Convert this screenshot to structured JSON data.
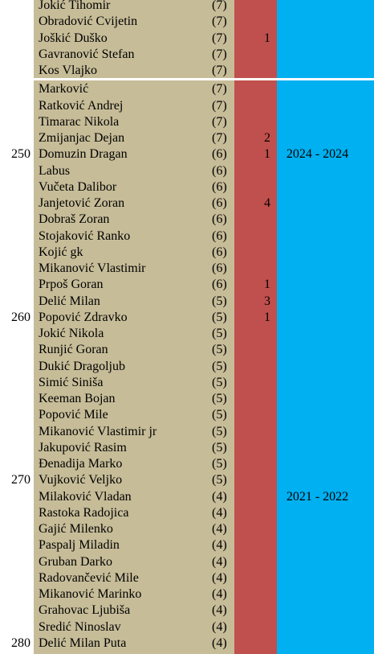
{
  "colors": {
    "name_column": "#c6bc98",
    "count_column": "#c0504d",
    "years_column": "#00b0f0",
    "separator": "#ffffff"
  },
  "rows": [
    {
      "rank": "",
      "name": "Jokić Tihomir",
      "pts": "(7)",
      "cnt": "",
      "yrs": ""
    },
    {
      "rank": "",
      "name": "Obradović Cvijetin",
      "pts": "(7)",
      "cnt": "",
      "yrs": ""
    },
    {
      "rank": "",
      "name": "Joškić Duško",
      "pts": "(7)",
      "cnt": "1",
      "yrs": ""
    },
    {
      "rank": "",
      "name": "Gavranović Stefan",
      "pts": "(7)",
      "cnt": "",
      "yrs": ""
    },
    {
      "rank": "",
      "name": "Kos Vlajko",
      "pts": "(7)",
      "cnt": "",
      "yrs": ""
    },
    {
      "rank": "",
      "name": "Marković",
      "pts": "(7)",
      "cnt": "",
      "yrs": ""
    },
    {
      "rank": "",
      "name": "Ratković Andrej",
      "pts": "(7)",
      "cnt": "",
      "yrs": ""
    },
    {
      "rank": "",
      "name": "Timarac Nikola",
      "pts": "(7)",
      "cnt": "",
      "yrs": ""
    },
    {
      "rank": "",
      "name": "Zmijanjac Dejan",
      "pts": "(7)",
      "cnt": "2",
      "yrs": ""
    },
    {
      "rank": "250",
      "name": "Domuzin Dragan",
      "pts": "(6)",
      "cnt": "1",
      "yrs": "2024 - 2024"
    },
    {
      "rank": "",
      "name": "Labus",
      "pts": "(6)",
      "cnt": "",
      "yrs": ""
    },
    {
      "rank": "",
      "name": "Vučeta Dalibor",
      "pts": "(6)",
      "cnt": "",
      "yrs": ""
    },
    {
      "rank": "",
      "name": "Janjetović Zoran",
      "pts": "(6)",
      "cnt": "4",
      "yrs": ""
    },
    {
      "rank": "",
      "name": "Dobraš Zoran",
      "pts": "(6)",
      "cnt": "",
      "yrs": ""
    },
    {
      "rank": "",
      "name": "Stojaković Ranko",
      "pts": "(6)",
      "cnt": "",
      "yrs": ""
    },
    {
      "rank": "",
      "name": "Kojić gk",
      "pts": "(6)",
      "cnt": "",
      "yrs": ""
    },
    {
      "rank": "",
      "name": "Mikanović Vlastimir",
      "pts": "(6)",
      "cnt": "",
      "yrs": ""
    },
    {
      "rank": "",
      "name": "Prpoš Goran",
      "pts": "(6)",
      "cnt": "1",
      "yrs": ""
    },
    {
      "rank": "",
      "name": "Delić Milan",
      "pts": "(5)",
      "cnt": "3",
      "yrs": ""
    },
    {
      "rank": "260",
      "name": "Popović Zdravko",
      "pts": "(5)",
      "cnt": "1",
      "yrs": ""
    },
    {
      "rank": "",
      "name": "Jokić Nikola",
      "pts": "(5)",
      "cnt": "",
      "yrs": ""
    },
    {
      "rank": "",
      "name": "Runjić Goran",
      "pts": "(5)",
      "cnt": "",
      "yrs": ""
    },
    {
      "rank": "",
      "name": "Dukić Dragoljub",
      "pts": "(5)",
      "cnt": "",
      "yrs": ""
    },
    {
      "rank": "",
      "name": "Simić Siniša",
      "pts": "(5)",
      "cnt": "",
      "yrs": ""
    },
    {
      "rank": "",
      "name": "Keeman Bojan",
      "pts": "(5)",
      "cnt": "",
      "yrs": ""
    },
    {
      "rank": "",
      "name": "Popović Mile",
      "pts": "(5)",
      "cnt": "",
      "yrs": ""
    },
    {
      "rank": "",
      "name": "Mikanović Vlastimir jr",
      "pts": "(5)",
      "cnt": "",
      "yrs": ""
    },
    {
      "rank": "",
      "name": "Jakupović Rasim",
      "pts": "(5)",
      "cnt": "",
      "yrs": ""
    },
    {
      "rank": "",
      "name": "Đenadija Marko",
      "pts": "(5)",
      "cnt": "",
      "yrs": ""
    },
    {
      "rank": "270",
      "name": "Vujković Veljko",
      "pts": "(5)",
      "cnt": "",
      "yrs": ""
    },
    {
      "rank": "",
      "name": "Milaković Vladan",
      "pts": "(4)",
      "cnt": "",
      "yrs": "2021 - 2022"
    },
    {
      "rank": "",
      "name": "Rastoka Radojica",
      "pts": "(4)",
      "cnt": "",
      "yrs": ""
    },
    {
      "rank": "",
      "name": "Gajić Milenko",
      "pts": "(4)",
      "cnt": "",
      "yrs": ""
    },
    {
      "rank": "",
      "name": "Paspalj Miladin",
      "pts": "(4)",
      "cnt": "",
      "yrs": ""
    },
    {
      "rank": "",
      "name": "Gruban Darko",
      "pts": "(4)",
      "cnt": "",
      "yrs": ""
    },
    {
      "rank": "",
      "name": "Radovančević Mile",
      "pts": "(4)",
      "cnt": "",
      "yrs": ""
    },
    {
      "rank": "",
      "name": "Mikanović Marinko",
      "pts": "(4)",
      "cnt": "",
      "yrs": ""
    },
    {
      "rank": "",
      "name": "Grahovac Ljubiša",
      "pts": "(4)",
      "cnt": "",
      "yrs": ""
    },
    {
      "rank": "",
      "name": "Sredić Ninoslav",
      "pts": "(4)",
      "cnt": "",
      "yrs": ""
    },
    {
      "rank": "280",
      "name": "Delić Milan Puta",
      "pts": "(4)",
      "cnt": "",
      "yrs": ""
    }
  ]
}
